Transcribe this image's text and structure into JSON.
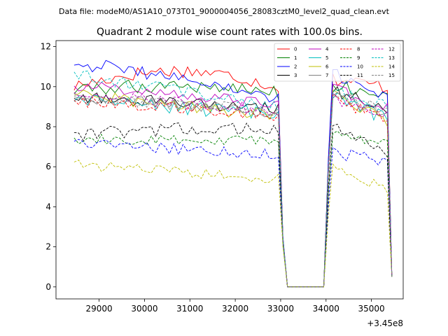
{
  "figure": {
    "suptitle": "Data file: modeM0/AS1A10_073T01_9000004056_28083cztM0_level2_quad_clean.evt",
    "title": "Quadrant 2 module wise count rates with 100.0s bins.",
    "x_offset_label": "+3.45e8"
  },
  "chart_data": {
    "type": "line",
    "title": "Quadrant 2 module wise count rates with 100.0s bins.",
    "xlabel": "",
    "ylabel": "",
    "x_offset": 345000000,
    "xlim": [
      28050,
      35700
    ],
    "ylim": [
      -0.6,
      12.3
    ],
    "xticks": [
      29000,
      30000,
      31000,
      32000,
      33000,
      34000,
      35000
    ],
    "yticks": [
      0,
      2,
      4,
      6,
      8,
      10,
      12
    ],
    "xtick_labels": [
      "29000",
      "30000",
      "31000",
      "32000",
      "33000",
      "34000",
      "35000"
    ],
    "ytick_labels": [
      "0",
      "2",
      "4",
      "6",
      "8",
      "10",
      "12"
    ],
    "grid": false,
    "legend_location": "top-right",
    "legend_columns": 4,
    "x_start": 28450,
    "x_step": 100,
    "x_end": 35450,
    "gap_range": [
      33150,
      33950
    ],
    "series": [
      {
        "name": "0",
        "color": "#ff0000",
        "dash": "solid",
        "base": 10.0,
        "end": 10.0,
        "amp": 0.35,
        "rise_mid": 0.8,
        "recover": 10.4,
        "recover_end": 10.0
      },
      {
        "name": "1",
        "color": "#008000",
        "dash": "solid",
        "base": 9.8,
        "end": 9.7,
        "amp": 0.35,
        "rise_mid": 0.3,
        "recover": 10.2,
        "recover_end": 9.4
      },
      {
        "name": "2",
        "color": "#0000ff",
        "dash": "solid",
        "base": 11.2,
        "end": 9.3,
        "amp": 0.35,
        "rise_mid": 0.2,
        "recover": 10.6,
        "recover_end": 9.6
      },
      {
        "name": "3",
        "color": "#000000",
        "dash": "solid",
        "base": 9.5,
        "end": 8.9,
        "amp": 0.3,
        "rise_mid": 0.0,
        "recover": 9.8,
        "recover_end": 8.9
      },
      {
        "name": "4",
        "color": "#bf00bf",
        "dash": "solid",
        "base": 10.1,
        "end": 9.1,
        "amp": 0.3,
        "rise_mid": 0.0,
        "recover": 9.9,
        "recover_end": 9.0
      },
      {
        "name": "5",
        "color": "#00bfbf",
        "dash": "solid",
        "base": 9.3,
        "end": 8.6,
        "amp": 0.35,
        "rise_mid": 0.0,
        "recover": 9.5,
        "recover_end": 8.4
      },
      {
        "name": "6",
        "color": "#bfbf00",
        "dash": "solid",
        "base": 9.6,
        "end": 8.5,
        "amp": 0.3,
        "rise_mid": 0.0,
        "recover": 9.6,
        "recover_end": 8.3
      },
      {
        "name": "7",
        "color": "#808080",
        "dash": "solid",
        "base": 9.5,
        "end": 8.7,
        "amp": 0.3,
        "rise_mid": 0.0,
        "recover": 9.6,
        "recover_end": 8.6
      },
      {
        "name": "8",
        "color": "#ff0000",
        "dash": "dashed",
        "base": 9.3,
        "end": 8.6,
        "amp": 0.3,
        "rise_mid": 0.0,
        "recover": 9.4,
        "recover_end": 8.4
      },
      {
        "name": "9",
        "color": "#008000",
        "dash": "dashed",
        "base": 7.4,
        "end": 7.3,
        "amp": 0.25,
        "rise_mid": 0.0,
        "recover": 7.7,
        "recover_end": 7.1
      },
      {
        "name": "10",
        "color": "#0000ff",
        "dash": "dashed",
        "base": 7.2,
        "end": 6.6,
        "amp": 0.3,
        "rise_mid": 0.0,
        "recover": 6.7,
        "recover_end": 6.3
      },
      {
        "name": "11",
        "color": "#000000",
        "dash": "dashed",
        "base": 7.6,
        "end": 7.9,
        "amp": 0.35,
        "rise_mid": 0.1,
        "recover": 8.1,
        "recover_end": 6.7
      },
      {
        "name": "12",
        "color": "#bf00bf",
        "dash": "dashed",
        "base": 9.6,
        "end": 8.8,
        "amp": 0.3,
        "rise_mid": 0.0,
        "recover": 9.4,
        "recover_end": 8.6
      },
      {
        "name": "13",
        "color": "#00bfbf",
        "dash": "dashed",
        "base": 10.6,
        "end": 9.0,
        "amp": 0.3,
        "rise_mid": 0.0,
        "recover": 9.8,
        "recover_end": 9.0
      },
      {
        "name": "14",
        "color": "#bfbf00",
        "dash": "dashed",
        "base": 6.1,
        "end": 5.4,
        "amp": 0.25,
        "rise_mid": 0.0,
        "recover": 5.9,
        "recover_end": 4.9
      },
      {
        "name": "15",
        "color": "#808080",
        "dash": "dashed",
        "base": 9.4,
        "end": 8.8,
        "amp": 0.3,
        "rise_mid": 0.0,
        "recover": 9.5,
        "recover_end": 8.8
      }
    ]
  }
}
